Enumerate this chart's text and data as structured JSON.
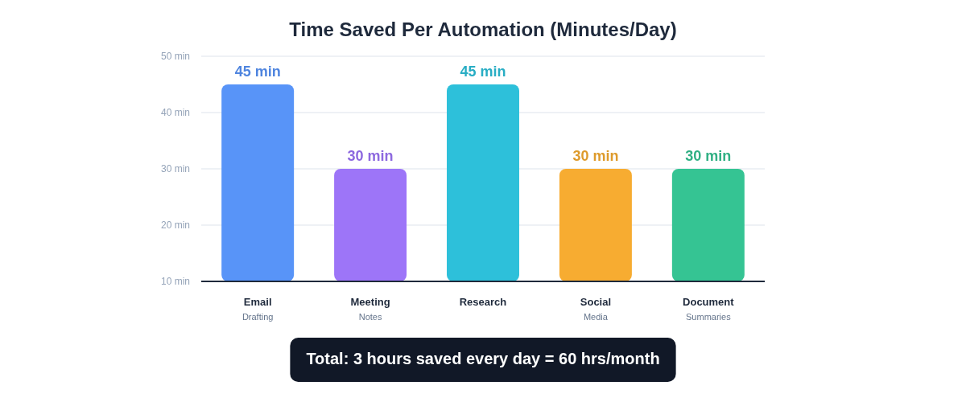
{
  "chart_data": {
    "type": "bar",
    "title": "Time Saved Per Automation (Minutes/Day)",
    "categories": [
      "Email\nDrafting",
      "Meeting\nNotes",
      "Research",
      "Social\nMedia",
      "Document\nSummaries"
    ],
    "values": [
      45,
      30,
      45,
      30,
      30
    ],
    "colors": [
      "#5894f8",
      "#9d75f8",
      "#2dc0da",
      "#f7ac31",
      "#35c493"
    ],
    "value_labels": [
      "45 min",
      "30 min",
      "45 min",
      "30 min",
      "30 min"
    ],
    "ylim": [
      10,
      50
    ],
    "yticks": [
      {
        "value": 10,
        "label": "10 min"
      },
      {
        "value": 20,
        "label": "20 min"
      },
      {
        "value": 30,
        "label": "30 min"
      },
      {
        "value": 40,
        "label": "40 min"
      },
      {
        "value": 50,
        "label": "50 min"
      }
    ],
    "grid": "y",
    "annotations": [
      "Total: 3 hours saved every day = 60 hrs/month"
    ]
  }
}
